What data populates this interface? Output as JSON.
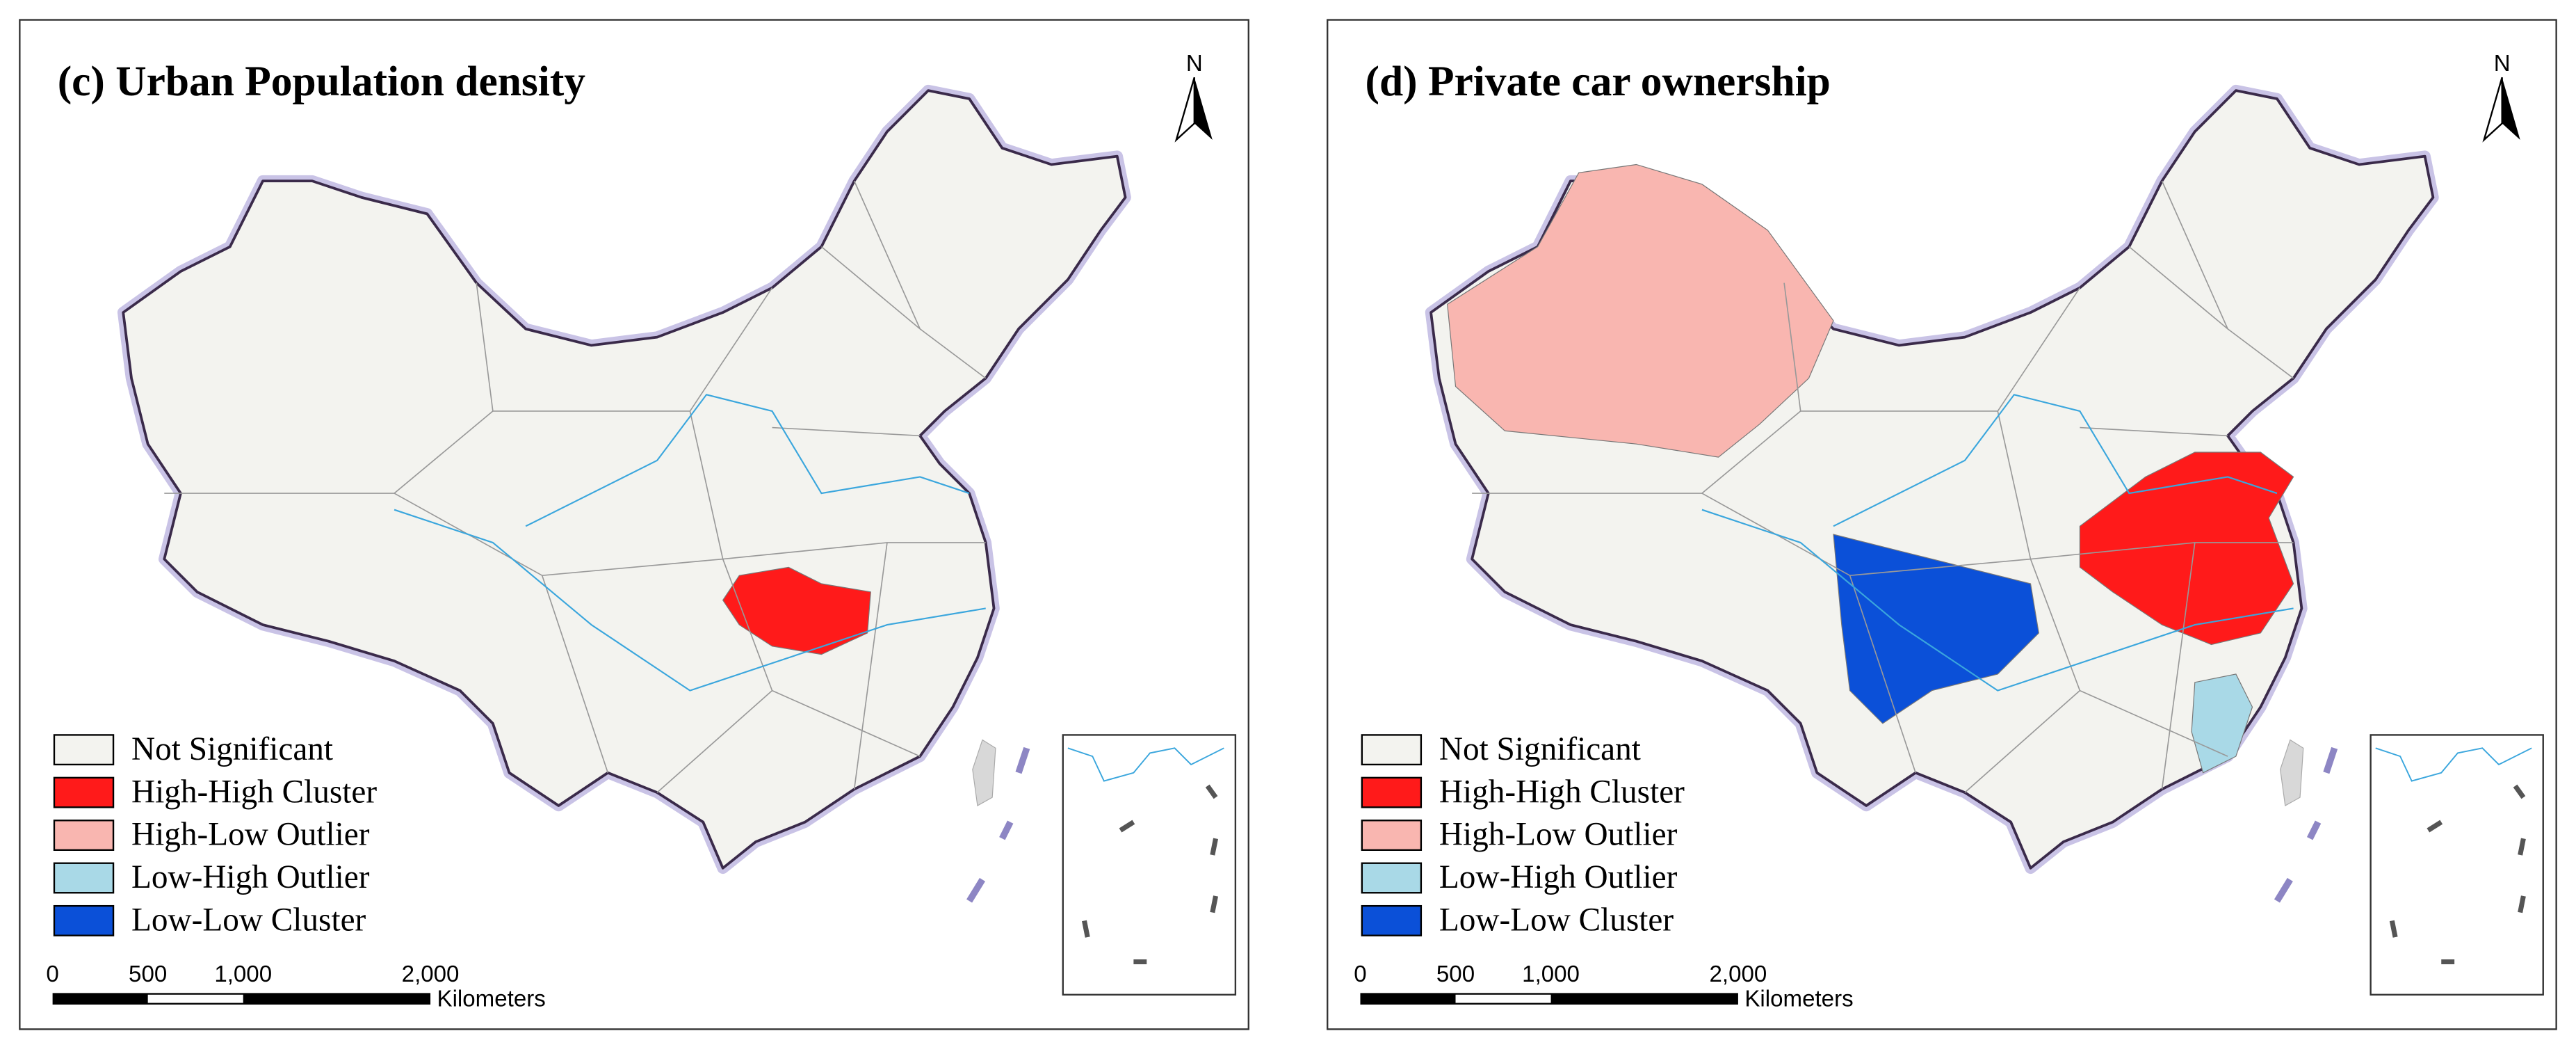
{
  "panels": [
    {
      "title": "(c) Urban Population density",
      "north": "N",
      "legend": [
        {
          "label": "Not Significant",
          "color": "#f3f3ef"
        },
        {
          "label": "High-High Cluster",
          "color": "#ff1a1a"
        },
        {
          "label": "High-Low Outlier",
          "color": "#f9b6b0"
        },
        {
          "label": "Low-High Outlier",
          "color": "#a9d9e7"
        },
        {
          "label": "Low-Low Cluster",
          "color": "#0b50d8"
        }
      ],
      "scale_bar": {
        "labels": [
          "0",
          "500",
          "1,000",
          "2,000"
        ],
        "unit": "Kilometers"
      }
    },
    {
      "title": "(d) Private car ownership",
      "north": "N",
      "legend": [
        {
          "label": "Not Significant",
          "color": "#f3f3ef"
        },
        {
          "label": "High-High Cluster",
          "color": "#ff1a1a"
        },
        {
          "label": "High-Low Outlier",
          "color": "#f9b6b0"
        },
        {
          "label": "Low-High Outlier",
          "color": "#a9d9e7"
        },
        {
          "label": "Low-Low Cluster",
          "color": "#0b50d8"
        }
      ],
      "scale_bar": {
        "labels": [
          "0",
          "500",
          "1,000",
          "2,000"
        ],
        "unit": "Kilometers"
      }
    }
  ]
}
